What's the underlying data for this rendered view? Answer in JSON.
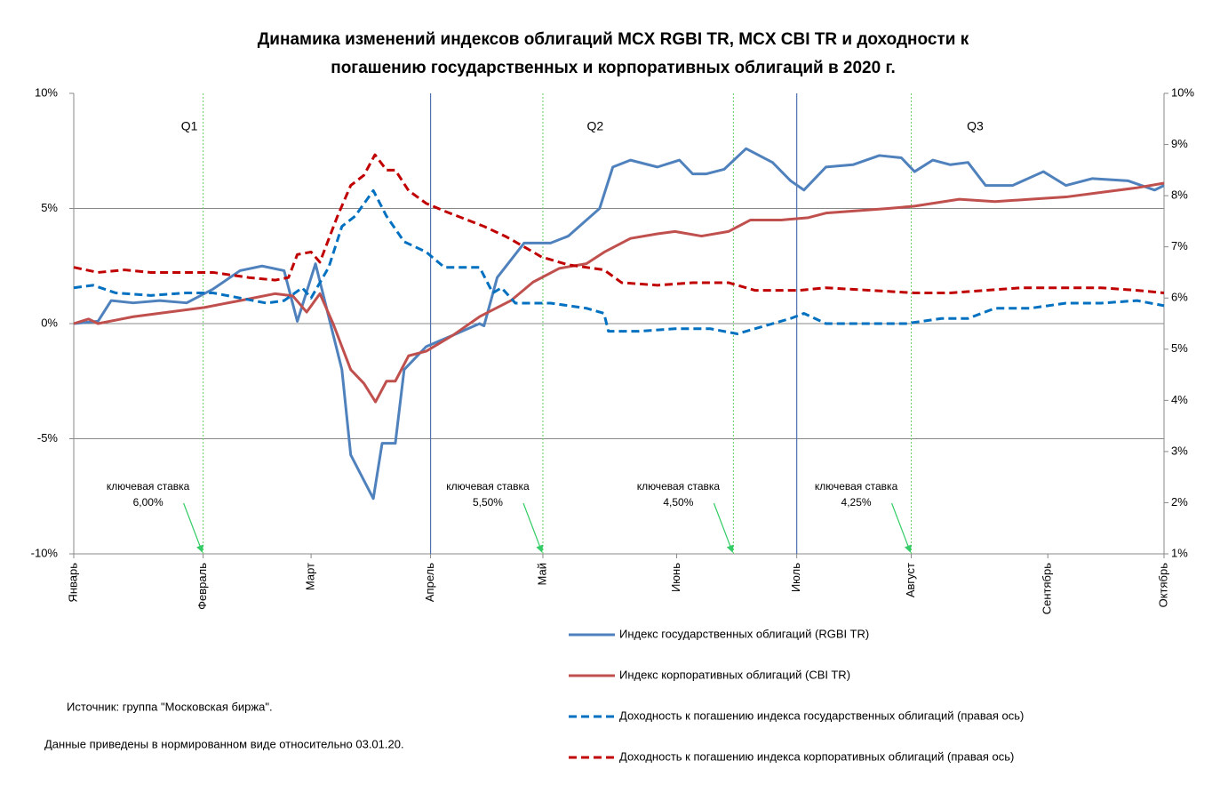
{
  "chart_data": {
    "type": "line",
    "title": [
      "Динамика изменений индексов  облигаций  MCX RGBI TR, MCX CBI TR и доходности к",
      "погашению государственных и корпоративных облигаций в 2020 г."
    ],
    "xlim": [
      0,
      198
    ],
    "xticks": [
      {
        "value": 0,
        "label": "Январь"
      },
      {
        "value": 23.5,
        "label": "Февраль"
      },
      {
        "value": 43.1,
        "label": "Март"
      },
      {
        "value": 64.8,
        "label": "Апрель"
      },
      {
        "value": 85.2,
        "label": "Май"
      },
      {
        "value": 109.5,
        "label": "Июнь"
      },
      {
        "value": 131.3,
        "label": "Июль"
      },
      {
        "value": 152.1,
        "label": "Август"
      },
      {
        "value": 176.9,
        "label": "Сентябрь"
      },
      {
        "value": 198,
        "label": "Октябрь"
      }
    ],
    "ylim": [
      -10,
      10
    ],
    "yticks": [
      {
        "value": -10,
        "label": "-10%"
      },
      {
        "value": -5,
        "label": "-5%"
      },
      {
        "value": 0,
        "label": "0%"
      },
      {
        "value": 5,
        "label": "5%"
      },
      {
        "value": 10,
        "label": "10%"
      }
    ],
    "y2lim": [
      1,
      10
    ],
    "y2ticks": [
      {
        "value": 1,
        "label": "1%"
      },
      {
        "value": 2,
        "label": "2%"
      },
      {
        "value": 3,
        "label": "3%"
      },
      {
        "value": 4,
        "label": "4%"
      },
      {
        "value": 5,
        "label": "5%"
      },
      {
        "value": 6,
        "label": "6%"
      },
      {
        "value": 7,
        "label": "7%"
      },
      {
        "value": 8,
        "label": "8%"
      },
      {
        "value": 9,
        "label": "9%"
      },
      {
        "value": 10,
        "label": "10%"
      }
    ],
    "grid": true,
    "quarter_lines": [
      64.8,
      131.3
    ],
    "quarters": [
      {
        "label": "Q1",
        "x": 21
      },
      {
        "label": "Q2",
        "x": 94.7
      },
      {
        "label": "Q3",
        "x": 163.7
      }
    ],
    "key_rate_events": [
      {
        "x": 23.5,
        "text": [
          "ключевая ставка",
          "6,00%"
        ]
      },
      {
        "x": 85.2,
        "text": [
          "ключевая ставка",
          "5,50%"
        ]
      },
      {
        "x": 119.8,
        "text": [
          "ключевая ставка",
          "4,50%"
        ]
      },
      {
        "x": 152.1,
        "text": [
          "ключевая ставка",
          "4,25%"
        ]
      }
    ],
    "notes": [
      "Источник: группа \"Московская биржа\".",
      "Данные приведены  в нормированном  виде относительно 03.01.20."
    ],
    "series": [
      {
        "name": "Индекс государственных облигаций (RGBI TR)",
        "color": "#4f81bd",
        "dash": false,
        "x": [
          0,
          4.4,
          6.8,
          10.8,
          15.6,
          20.5,
          25.3,
          30.2,
          34.2,
          38.2,
          40.6,
          43.9,
          48.7,
          50.3,
          54.4,
          56,
          58.4,
          60,
          64,
          68.9,
          73.7,
          74.5,
          76.9,
          81.8,
          86.6,
          89.8,
          95.5,
          97.9,
          101.1,
          106,
          110,
          112.4,
          114.8,
          118.1,
          122.1,
          126.9,
          130.2,
          132.6,
          136.6,
          141.5,
          146.3,
          150.3,
          152.7,
          156,
          159.2,
          162.4,
          165.6,
          170.5,
          176.1,
          180.2,
          185,
          191.5,
          196.3,
          198
        ],
        "values": [
          0,
          0.1,
          1.0,
          0.9,
          1.0,
          0.9,
          1.5,
          2.3,
          2.5,
          2.3,
          0.1,
          2.6,
          -2,
          -5.7,
          -7.6,
          -5.2,
          -5.2,
          -2,
          -1,
          -0.5,
          0,
          -0.1,
          2,
          3.5,
          3.5,
          3.8,
          5,
          6.8,
          7.1,
          6.8,
          7.1,
          6.5,
          6.5,
          6.7,
          7.6,
          7,
          6.2,
          5.8,
          6.8,
          6.9,
          7.3,
          7.2,
          6.6,
          7.1,
          6.9,
          7,
          6,
          6,
          6.6,
          6,
          6.3,
          6.2,
          5.8,
          6.0
        ]
      },
      {
        "name": "Индекс корпоративных облигаций (CBI TR)",
        "color": "#c0504d",
        "dash": false,
        "x": [
          0,
          2.7,
          4.4,
          10.8,
          17.3,
          23.7,
          30.2,
          36.6,
          39.8,
          42.3,
          44.7,
          47.1,
          50.3,
          52.7,
          54.8,
          56.8,
          58.4,
          60.8,
          64,
          68.9,
          73.7,
          75.3,
          79.4,
          83.4,
          88.2,
          93.1,
          96.3,
          101.1,
          106,
          109.2,
          114,
          118.9,
          122.9,
          128.5,
          133.4,
          136.6,
          147.9,
          152.7,
          160.8,
          167.3,
          173.7,
          180.2,
          186.6,
          193.1,
          198
        ],
        "values": [
          0,
          0.2,
          0,
          0.3,
          0.5,
          0.7,
          1.0,
          1.3,
          1.2,
          0.5,
          1.3,
          0,
          -2,
          -2.6,
          -3.4,
          -2.5,
          -2.5,
          -1.4,
          -1.2,
          -0.5,
          0.3,
          0.5,
          1,
          1.8,
          2.4,
          2.6,
          3.1,
          3.7,
          3.9,
          4.0,
          3.8,
          4,
          4.5,
          4.5,
          4.6,
          4.8,
          5,
          5.1,
          5.4,
          5.3,
          5.4,
          5.5,
          5.7,
          5.9,
          6.1
        ]
      },
      {
        "name": "Доходность к погашению индекса государственных облигаций (правая ось)",
        "color": "#0070c0",
        "dash": true,
        "axis": "y2",
        "x": [
          0,
          3.5,
          7.6,
          14,
          20.5,
          25.3,
          30.2,
          35,
          38.2,
          41.5,
          43.1,
          46.3,
          48.7,
          51.1,
          54.4,
          56.8,
          60,
          64,
          67.3,
          73.7,
          76.1,
          77.7,
          80.2,
          86.6,
          93.1,
          96.3,
          97.1,
          102.7,
          109.2,
          115.6,
          120.5,
          125.3,
          130.2,
          132.6,
          136.6,
          144.7,
          151.1,
          157.6,
          162.4,
          167.3,
          173.7,
          180.2,
          186.6,
          193.1,
          198
        ],
        "values": [
          6.2,
          6.25,
          6.1,
          6.05,
          6.1,
          6.1,
          6.0,
          5.9,
          5.95,
          6.2,
          6.0,
          6.6,
          7.4,
          7.6,
          8.1,
          7.6,
          7.1,
          6.9,
          6.6,
          6.6,
          6.1,
          6.2,
          5.9,
          5.9,
          5.8,
          5.7,
          5.35,
          5.35,
          5.4,
          5.4,
          5.3,
          5.45,
          5.6,
          5.7,
          5.5,
          5.5,
          5.5,
          5.6,
          5.6,
          5.8,
          5.8,
          5.9,
          5.9,
          5.95,
          5.85
        ]
      },
      {
        "name": "Доходность к погашению индекса корпоративных облигаций (правая ось)",
        "color": "#c00000",
        "dash": true,
        "axis": "y2",
        "x": [
          0,
          4.4,
          9.2,
          14,
          20.5,
          25.3,
          31.8,
          36.6,
          39,
          40.6,
          43.1,
          44.7,
          47.9,
          50.3,
          52.7,
          54.7,
          56.8,
          58.4,
          60.8,
          64,
          67.3,
          72.1,
          74.5,
          78.5,
          81.8,
          85,
          89.8,
          96.3,
          99.5,
          106,
          112.4,
          118.9,
          123.7,
          131.8,
          136.6,
          144.7,
          152.7,
          159.2,
          165.6,
          172.1,
          180.2,
          186.6,
          193.1,
          198
        ],
        "values": [
          6.6,
          6.5,
          6.55,
          6.5,
          6.5,
          6.5,
          6.4,
          6.35,
          6.4,
          6.85,
          6.9,
          6.7,
          7.6,
          8.2,
          8.4,
          8.8,
          8.5,
          8.5,
          8.1,
          7.85,
          7.7,
          7.5,
          7.4,
          7.2,
          7.0,
          6.8,
          6.65,
          6.55,
          6.3,
          6.25,
          6.3,
          6.3,
          6.15,
          6.15,
          6.2,
          6.15,
          6.1,
          6.1,
          6.15,
          6.2,
          6.2,
          6.2,
          6.15,
          6.1
        ]
      }
    ]
  }
}
